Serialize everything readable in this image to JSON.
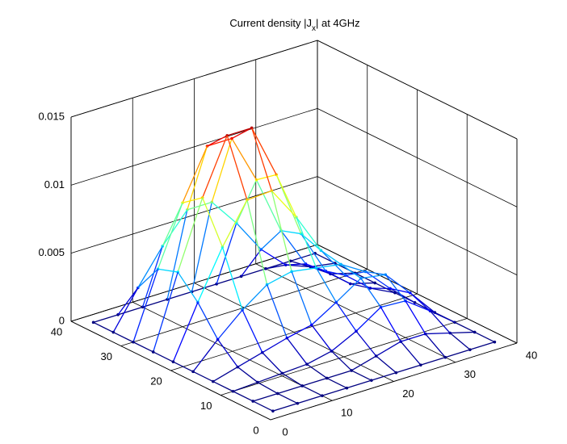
{
  "chart_data": {
    "type": "mesh3d",
    "title": [
      "Current density |J",
      "x",
      "| at 4GHz"
    ],
    "colormap": "jet",
    "grid": true,
    "x": [
      2,
      6,
      10,
      14,
      18,
      22,
      26,
      30,
      34,
      38
    ],
    "y": [
      2,
      6,
      10,
      14,
      18,
      22,
      26,
      30,
      34,
      38
    ],
    "z": [
      [
        0,
        0,
        0,
        0,
        0,
        0,
        0,
        0,
        0,
        0
      ],
      [
        0,
        0,
        0,
        0,
        0,
        0.0005,
        0.001,
        0.001,
        0.0005,
        0
      ],
      [
        0,
        0.0001,
        0.0002,
        0.0003,
        0.0007,
        0.0016,
        0.0028,
        0.0027,
        0.0014,
        0
      ],
      [
        0,
        0.0005,
        0.001,
        0.0015,
        0.0019,
        0.003,
        0.0042,
        0.0039,
        0.002,
        0
      ],
      [
        0,
        0.0018,
        0.0034,
        0.0047,
        0.0051,
        0.0048,
        0.0045,
        0.0034,
        0.0016,
        0
      ],
      [
        0,
        0.0038,
        0.0073,
        0.0102,
        0.0103,
        0.0078,
        0.0048,
        0.0024,
        0.0009,
        0
      ],
      [
        0,
        0.0053,
        0.0102,
        0.0142,
        0.0142,
        0.0102,
        0.0053,
        0.002,
        0.0005,
        0
      ],
      [
        0,
        0.0048,
        0.0091,
        0.0127,
        0.0127,
        0.0091,
        0.0048,
        0.0018,
        0.0005,
        0
      ],
      [
        0,
        0.0027,
        0.0052,
        0.0073,
        0.0073,
        0.0052,
        0.0027,
        0.001,
        0.0003,
        0
      ],
      [
        0,
        0,
        0,
        0,
        0,
        0,
        0,
        0,
        0,
        0
      ]
    ],
    "xlim": [
      0,
      40
    ],
    "xticks": [
      0,
      10,
      20,
      30,
      40
    ],
    "ylim": [
      0,
      40
    ],
    "yticks": [
      0,
      10,
      20,
      30,
      40
    ],
    "zlim": [
      0,
      0.015
    ],
    "zticks": [
      0,
      0.005,
      0.01,
      0.015
    ]
  }
}
